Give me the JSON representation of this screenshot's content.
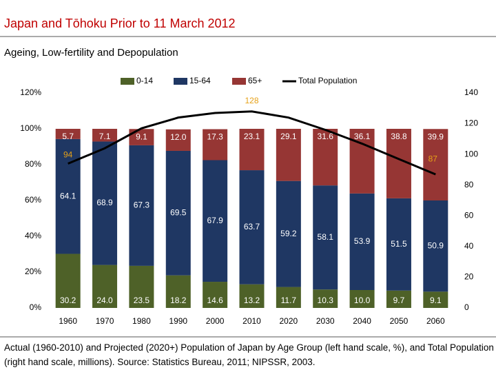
{
  "header": {
    "title": "Japan and Tōhoku Prior to 11 March 2012",
    "subtitle": "Ageing, Low-fertility and Depopulation"
  },
  "chart_data": {
    "type": "bar",
    "stacked": true,
    "categories": [
      "1960",
      "1970",
      "1980",
      "1990",
      "2000",
      "2010",
      "2020",
      "2030",
      "2040",
      "2050",
      "2060"
    ],
    "series": [
      {
        "name": "0-14",
        "color": "#4e6128",
        "values": [
          30.2,
          24.0,
          23.5,
          18.2,
          14.6,
          13.2,
          11.7,
          10.3,
          10.0,
          9.7,
          9.1
        ],
        "value_labels": [
          "30.2",
          "24.0",
          "23.5",
          "18.2",
          "14.6",
          "13.2",
          "11.7",
          "10.3",
          "10.0",
          "9.7",
          "9.1"
        ]
      },
      {
        "name": "15-64",
        "color": "#1f3763",
        "values": [
          64.1,
          68.9,
          67.3,
          69.5,
          67.9,
          63.7,
          59.2,
          58.1,
          53.9,
          51.5,
          50.9
        ],
        "value_labels": [
          "64.1",
          "68.9",
          "67.3",
          "69.5",
          "67.9",
          "63.7",
          "59.2",
          "58.1",
          "53.9",
          "51.5",
          "50.9"
        ]
      },
      {
        "name": "65+",
        "color": "#963634",
        "values": [
          5.7,
          7.1,
          9.1,
          12.0,
          17.3,
          23.1,
          29.1,
          31.6,
          36.1,
          38.8,
          39.9
        ],
        "value_labels": [
          "5.7",
          "7.1",
          "9.1",
          "12.0",
          "17.3",
          "23.1",
          "29.1",
          "31.6",
          "36.1",
          "38.8",
          "39.9"
        ]
      },
      {
        "name": "Total Population",
        "type": "line",
        "axis": "y2",
        "color": "#000000",
        "label_color": "#e6a117",
        "values": [
          94,
          104,
          117,
          124,
          127,
          128,
          124,
          116,
          107,
          97,
          87
        ],
        "value_labels": [
          "94",
          null,
          null,
          null,
          null,
          "128",
          null,
          null,
          null,
          null,
          "87"
        ]
      }
    ],
    "ylim": [
      0,
      120
    ],
    "yticks": [
      {
        "value": 0,
        "label": "0%"
      },
      {
        "value": 20,
        "label": "20%"
      },
      {
        "value": 40,
        "label": "40%"
      },
      {
        "value": 60,
        "label": "60%"
      },
      {
        "value": 80,
        "label": "80%"
      },
      {
        "value": 100,
        "label": "100%"
      },
      {
        "value": 120,
        "label": "120%"
      }
    ],
    "y2lim": [
      0,
      140
    ],
    "y2ticks": [
      0,
      20,
      40,
      60,
      80,
      100,
      120,
      140
    ],
    "grid": false,
    "legend": "top",
    "caption": "Actual (1960-2010) and Projected (2020+) Population of Japan by Age Group (left hand scale, %), and Total Population (right hand scale, millions). Source: Statistics Bureau, 2011; NIPSSR, 2003."
  }
}
